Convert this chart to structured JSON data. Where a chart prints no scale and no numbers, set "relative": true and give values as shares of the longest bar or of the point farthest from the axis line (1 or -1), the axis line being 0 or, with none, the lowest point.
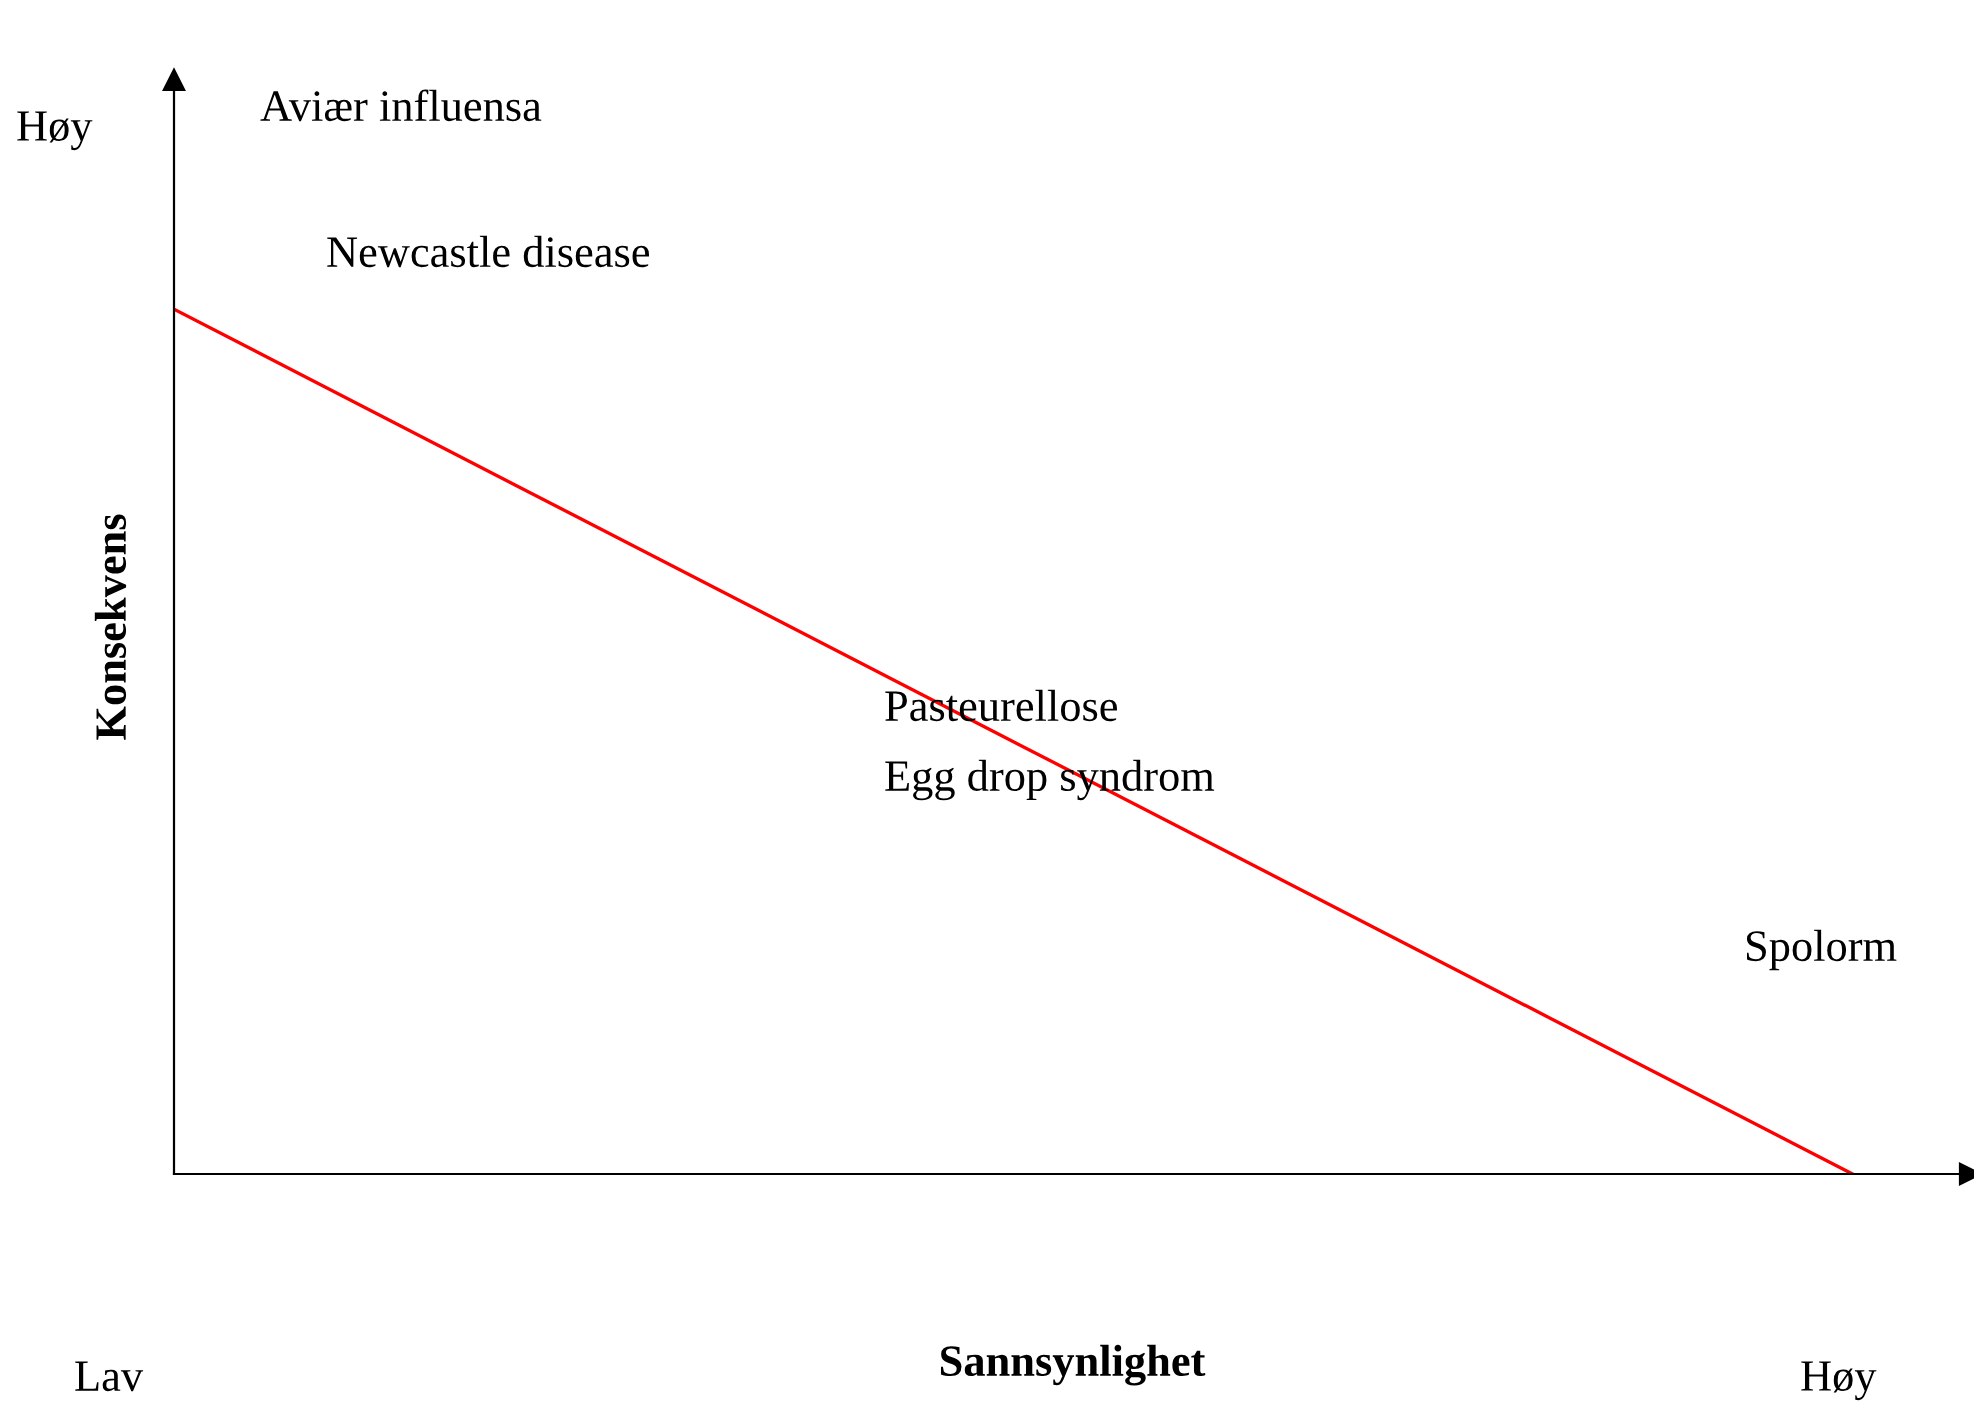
{
  "chart_data": {
    "type": "line",
    "relative": true,
    "xlabel": "Sannsynlighet",
    "ylabel": "Konsekvens",
    "categories": [
      null,
      null
    ],
    "series": [
      {
        "color": "#ff0000",
        "values": [
          1,
          0
        ]
      }
    ],
    "annotations": [
      "Aviær influensa",
      "Newcastle disease",
      "Pasteurellose",
      "Egg drop syndrom",
      "Spolorm",
      "Høy",
      "Lav",
      "Høy"
    ],
    "grid": false
  }
}
